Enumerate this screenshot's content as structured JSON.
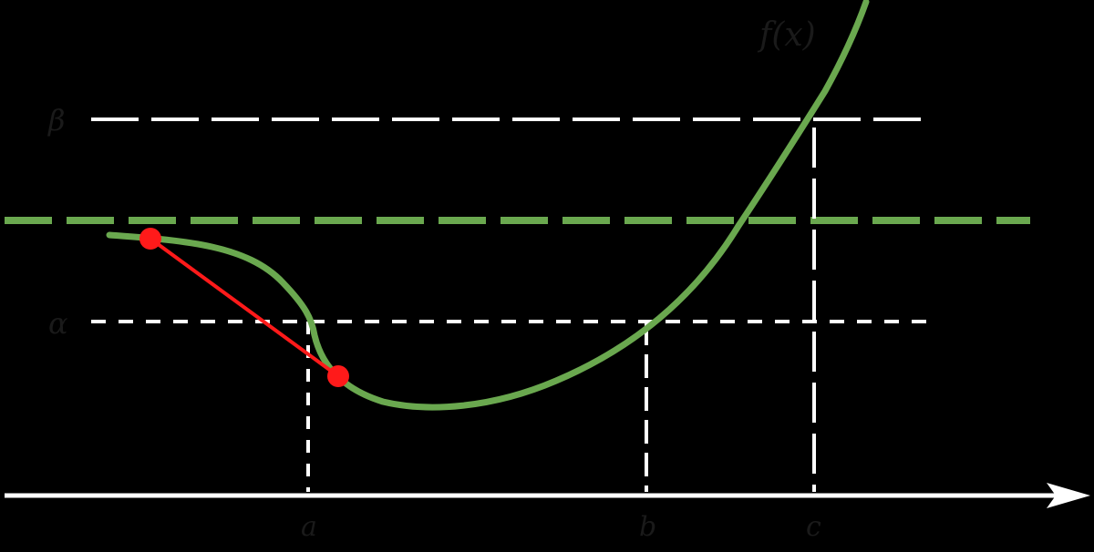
{
  "labels": {
    "function": "f(x)",
    "beta": "β",
    "alpha": "α",
    "a": "a",
    "b": "b",
    "c": "c"
  },
  "colors": {
    "background": "#000000",
    "curve": "#6aa84f",
    "secant": "#ff1a1a",
    "guide": "#ffffff",
    "axis": "#ffffff",
    "text": "#1a1a1a"
  }
}
